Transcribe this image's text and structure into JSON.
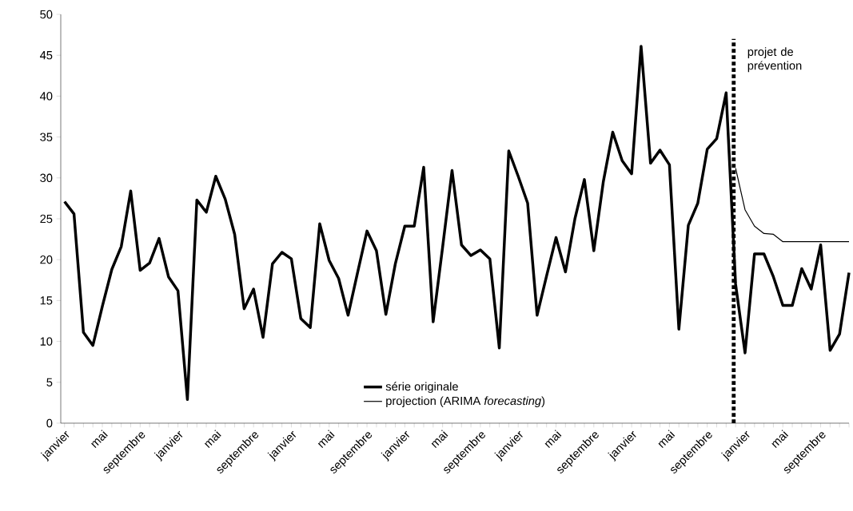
{
  "chart_data": {
    "type": "line",
    "categories": [
      "janvier",
      null,
      null,
      null,
      "mai",
      null,
      null,
      null,
      "septembre",
      null,
      null,
      null,
      "janvier",
      null,
      null,
      null,
      "mai",
      null,
      null,
      null,
      "septembre",
      null,
      null,
      null,
      "janvier",
      null,
      null,
      null,
      "mai",
      null,
      null,
      null,
      "septembre",
      null,
      null,
      null,
      "janvier",
      null,
      null,
      null,
      "mai",
      null,
      null,
      null,
      "septembre",
      null,
      null,
      null,
      "janvier",
      null,
      null,
      null,
      "mai",
      null,
      null,
      null,
      "septembre",
      null,
      null,
      null,
      "janvier",
      null,
      null,
      null,
      "mai",
      null,
      null,
      null,
      "septembre",
      null,
      null,
      null,
      "janvier",
      null,
      null,
      null,
      "mai",
      null,
      null,
      null,
      "septembre",
      null,
      null,
      null
    ],
    "series": [
      {
        "name": "série originale",
        "color": "#000000",
        "values": [
          27.1,
          25.6,
          11.1,
          9.5,
          14.3,
          18.8,
          21.6,
          28.4,
          18.7,
          19.6,
          22.6,
          17.9,
          16.2,
          2.9,
          27.3,
          25.8,
          30.2,
          27.4,
          23.1,
          14.0,
          16.4,
          10.5,
          19.5,
          20.9,
          20.1,
          12.8,
          11.7,
          24.4,
          19.9,
          17.7,
          13.2,
          18.4,
          23.5,
          21.1,
          13.3,
          19.5,
          24.1,
          24.1,
          31.3,
          12.4,
          21.5,
          30.9,
          21.8,
          20.5,
          21.2,
          20.1,
          9.2,
          33.3,
          30.2,
          26.9,
          13.2,
          18.0,
          22.7,
          18.5,
          25.0,
          29.8,
          21.1,
          29.5,
          35.6,
          32.1,
          30.5,
          46.1,
          31.8,
          33.4,
          31.6,
          11.5,
          24.2,
          26.9,
          33.5,
          34.8,
          40.4,
          17.0,
          8.6,
          20.7,
          20.7,
          17.9,
          14.4,
          14.4,
          18.9,
          16.4,
          21.8,
          8.9,
          10.9,
          18.4
        ]
      },
      {
        "name": "projection (ARIMA *forecasting*)",
        "color": "#000000",
        "values": [
          null,
          null,
          null,
          null,
          null,
          null,
          null,
          null,
          null,
          null,
          null,
          null,
          null,
          null,
          null,
          null,
          null,
          null,
          null,
          null,
          null,
          null,
          null,
          null,
          null,
          null,
          null,
          null,
          null,
          null,
          null,
          null,
          null,
          null,
          null,
          null,
          null,
          null,
          null,
          null,
          null,
          null,
          null,
          null,
          null,
          null,
          null,
          null,
          null,
          null,
          null,
          null,
          null,
          null,
          null,
          null,
          null,
          null,
          null,
          null,
          null,
          null,
          null,
          null,
          null,
          null,
          null,
          null,
          null,
          null,
          null,
          31.2,
          26.1,
          24.1,
          23.2,
          23.1,
          22.2,
          22.2,
          22.2,
          22.2,
          22.2,
          22.2,
          22.2,
          22.2
        ]
      }
    ],
    "annotations": [
      "projet de prévention"
    ],
    "ylim": [
      0,
      50
    ],
    "yticks": [
      0,
      5,
      10,
      15,
      20,
      25,
      30,
      35,
      40,
      45,
      50
    ],
    "grid": false,
    "legend": "bottom"
  }
}
